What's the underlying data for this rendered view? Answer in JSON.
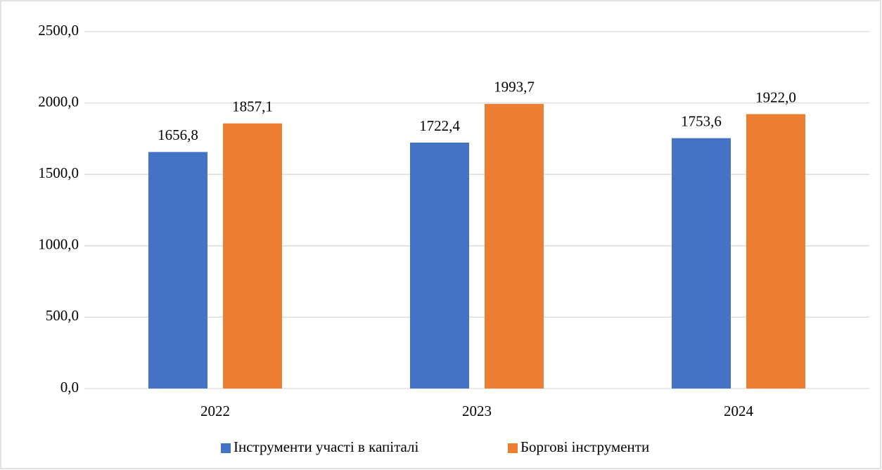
{
  "chart_data": {
    "type": "bar",
    "categories": [
      "2022",
      "2023",
      "2024"
    ],
    "series": [
      {
        "name": "Інструменти участі в капіталі",
        "color": "#4472c4",
        "values": [
          1656.8,
          1722.4,
          1753.6
        ],
        "value_labels": [
          "1656,8",
          "1722,4",
          "1753,6"
        ]
      },
      {
        "name": "Боргові інструменти",
        "color": "#ed7d31",
        "values": [
          1857.1,
          1993.7,
          1922.0
        ],
        "value_labels": [
          "1857,1",
          "1993,7",
          "1922,0"
        ]
      }
    ],
    "ylim": [
      0,
      2500
    ],
    "yticks": [
      {
        "value": 0,
        "label": "0,0"
      },
      {
        "value": 500,
        "label": "500,0"
      },
      {
        "value": 1000,
        "label": "1000,0"
      },
      {
        "value": 1500,
        "label": "1500,0"
      },
      {
        "value": 2000,
        "label": "2000,0"
      },
      {
        "value": 2500,
        "label": "2500,0"
      }
    ],
    "grid": true,
    "legend": "bottom"
  }
}
